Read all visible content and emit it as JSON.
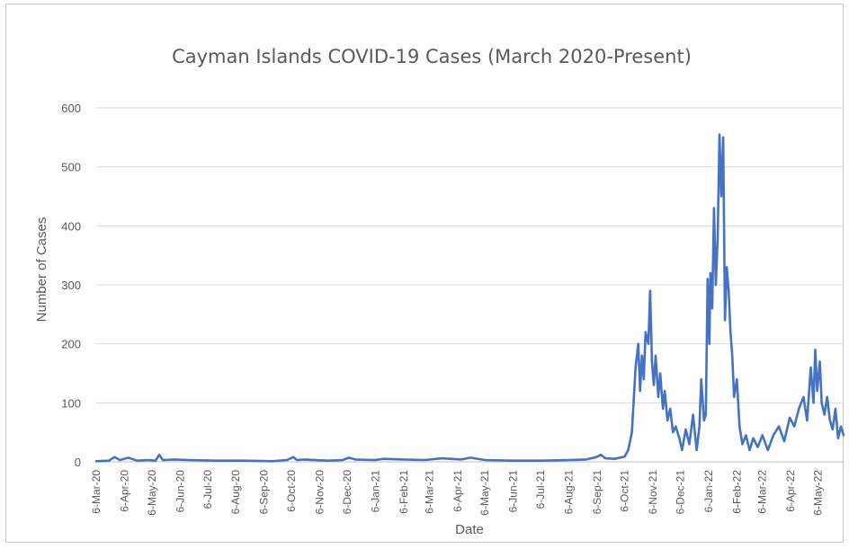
{
  "chart_data": {
    "type": "line",
    "title": "Cayman Islands COVID-19 Cases (March 2020-Present)",
    "xlabel": "Date",
    "ylabel": "Number of Cases",
    "ylim": [
      0,
      600
    ],
    "yticks": [
      "0",
      "100",
      "200",
      "300",
      "400",
      "500",
      "600"
    ],
    "xticks": [
      "6-Mar-20",
      "6-Apr-20",
      "6-May-20",
      "6-Jun-20",
      "6-Jul-20",
      "6-Aug-20",
      "6-Sep-20",
      "6-Oct-20",
      "6-Nov-20",
      "6-Dec-20",
      "6-Jan-21",
      "6-Feb-21",
      "6-Mar-21",
      "6-Apr-21",
      "6-May-21",
      "6-Jun-21",
      "6-Jul-21",
      "6-Aug-21",
      "6-Sep-21",
      "6-Oct-21",
      "6-Nov-21",
      "6-Dec-21",
      "6-Jan-22",
      "6-Feb-22",
      "6-Mar-22",
      "6-Apr-22",
      "6-May-22"
    ],
    "grid": true,
    "legend": "none",
    "color": "#4472c4",
    "series": [
      {
        "x": [
          "2020-03-06",
          "2020-03-20",
          "2020-03-26",
          "2020-04-01",
          "2020-04-10",
          "2020-04-20",
          "2020-05-01",
          "2020-05-10",
          "2020-05-14",
          "2020-05-18",
          "2020-05-30",
          "2020-06-15",
          "2020-07-15",
          "2020-08-15",
          "2020-09-15",
          "2020-10-01",
          "2020-10-08",
          "2020-10-12",
          "2020-10-20",
          "2020-11-15",
          "2020-12-01",
          "2020-12-08",
          "2020-12-15",
          "2021-01-05",
          "2021-01-15",
          "2021-02-06",
          "2021-03-01",
          "2021-03-20",
          "2021-04-10",
          "2021-04-20",
          "2021-05-06",
          "2021-06-06",
          "2021-07-06",
          "2021-08-06",
          "2021-08-25",
          "2021-09-05",
          "2021-09-10",
          "2021-09-15",
          "2021-09-25",
          "2021-10-06",
          "2021-10-10",
          "2021-10-14",
          "2021-10-18",
          "2021-10-21",
          "2021-10-23",
          "2021-10-25",
          "2021-10-27",
          "2021-10-29",
          "2021-11-01",
          "2021-11-03",
          "2021-11-05",
          "2021-11-07",
          "2021-11-09",
          "2021-11-12",
          "2021-11-14",
          "2021-11-17",
          "2021-11-19",
          "2021-11-22",
          "2021-11-25",
          "2021-11-28",
          "2021-12-01",
          "2021-12-05",
          "2021-12-08",
          "2021-12-12",
          "2021-12-16",
          "2021-12-20",
          "2021-12-24",
          "2021-12-27",
          "2021-12-29",
          "2022-01-01",
          "2022-01-03",
          "2022-01-05",
          "2022-01-07",
          "2022-01-08",
          "2022-01-10",
          "2022-01-12",
          "2022-01-14",
          "2022-01-16",
          "2022-01-18",
          "2022-01-20",
          "2022-01-22",
          "2022-01-24",
          "2022-01-26",
          "2022-01-28",
          "2022-01-30",
          "2022-02-01",
          "2022-02-03",
          "2022-02-06",
          "2022-02-09",
          "2022-02-12",
          "2022-02-16",
          "2022-02-20",
          "2022-02-24",
          "2022-03-01",
          "2022-03-06",
          "2022-03-12",
          "2022-03-18",
          "2022-03-24",
          "2022-03-30",
          "2022-04-05",
          "2022-04-10",
          "2022-04-15",
          "2022-04-20",
          "2022-04-24",
          "2022-04-28",
          "2022-05-01",
          "2022-05-03",
          "2022-05-05",
          "2022-05-08",
          "2022-05-10",
          "2022-05-13",
          "2022-05-16",
          "2022-05-19",
          "2022-05-22",
          "2022-05-25",
          "2022-05-28",
          "2022-05-31",
          "2022-06-03"
        ],
        "values": [
          1,
          2,
          8,
          3,
          7,
          2,
          3,
          2,
          12,
          3,
          4,
          3,
          2,
          2,
          1,
          3,
          8,
          3,
          4,
          2,
          3,
          7,
          4,
          3,
          5,
          4,
          3,
          6,
          4,
          7,
          3,
          2,
          2,
          3,
          4,
          8,
          12,
          6,
          5,
          9,
          20,
          50,
          160,
          200,
          120,
          180,
          140,
          220,
          200,
          290,
          170,
          130,
          180,
          110,
          150,
          90,
          120,
          70,
          90,
          50,
          60,
          40,
          20,
          55,
          30,
          80,
          20,
          60,
          140,
          70,
          80,
          310,
          200,
          320,
          260,
          430,
          300,
          380,
          555,
          450,
          550,
          240,
          330,
          290,
          220,
          180,
          110,
          140,
          60,
          30,
          45,
          20,
          40,
          25,
          45,
          20,
          45,
          60,
          35,
          75,
          60,
          90,
          110,
          70,
          160,
          100,
          190,
          120,
          170,
          100,
          80,
          110,
          70,
          55,
          90,
          40,
          60,
          45
        ]
      }
    ]
  }
}
